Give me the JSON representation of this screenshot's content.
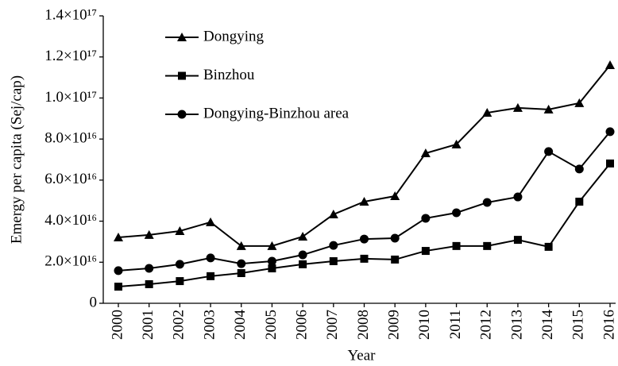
{
  "chart_data": {
    "type": "line",
    "xlabel": "Year",
    "ylabel": "Emergy per capita (Sej/cap)",
    "categories": [
      "2000",
      "2001",
      "2002",
      "2003",
      "2004",
      "2005",
      "2006",
      "2007",
      "2008",
      "2009",
      "2010",
      "2011",
      "2012",
      "2013",
      "2014",
      "2015",
      "2016"
    ],
    "series": [
      {
        "name": "Dongying",
        "color": "#000000",
        "marker": "triangle",
        "values": [
          3.21e+16,
          3.33e+16,
          3.52e+16,
          3.95e+16,
          2.79e+16,
          2.79e+16,
          3.25e+16,
          4.33e+16,
          4.95e+16,
          5.22e+16,
          7.31e+16,
          7.74e+16,
          9.28e+16,
          9.52e+16,
          9.44e+16,
          9.75e+16,
          1.16e+17
        ]
      },
      {
        "name": "Binzhou",
        "color": "#000000",
        "marker": "square",
        "values": [
          8100000000000000.0,
          9300000000000000.0,
          1.08e+16,
          1.32e+16,
          1.47e+16,
          1.7e+16,
          1.9e+16,
          2.05e+16,
          2.17e+16,
          2.13e+16,
          2.55e+16,
          2.79e+16,
          2.79e+16,
          3.09e+16,
          2.75e+16,
          4.95e+16,
          6.81e+16
        ]
      },
      {
        "name": "Dongying-Binzhou area",
        "color": "#000000",
        "marker": "circle",
        "values": [
          1.59e+16,
          1.7e+16,
          1.9e+16,
          2.21e+16,
          1.93e+16,
          2.05e+16,
          2.36e+16,
          2.82e+16,
          3.13e+16,
          3.17e+16,
          4.14e+16,
          4.41e+16,
          4.91e+16,
          5.18e+16,
          7.39e+16,
          6.54e+16,
          8.36e+16
        ]
      }
    ],
    "ylim": [
      0,
      1.4e+17
    ],
    "yticks": [
      0,
      {
        "value": 2e+16,
        "label": "2.0×10¹⁶"
      },
      {
        "value": 4e+16,
        "label": "4.0×10¹⁶"
      },
      {
        "value": 6e+16,
        "label": "6.0×10¹⁶"
      },
      {
        "value": 8e+16,
        "label": "8.0×10¹⁶"
      },
      {
        "value": 1e+17,
        "label": "1.0×10¹⁷"
      },
      {
        "value": 1.2e+17,
        "label": "1.2×10¹⁷"
      },
      {
        "value": 1.4e+17,
        "label": "1.4×10¹⁷"
      }
    ],
    "legend": "upper left",
    "grid": false
  }
}
